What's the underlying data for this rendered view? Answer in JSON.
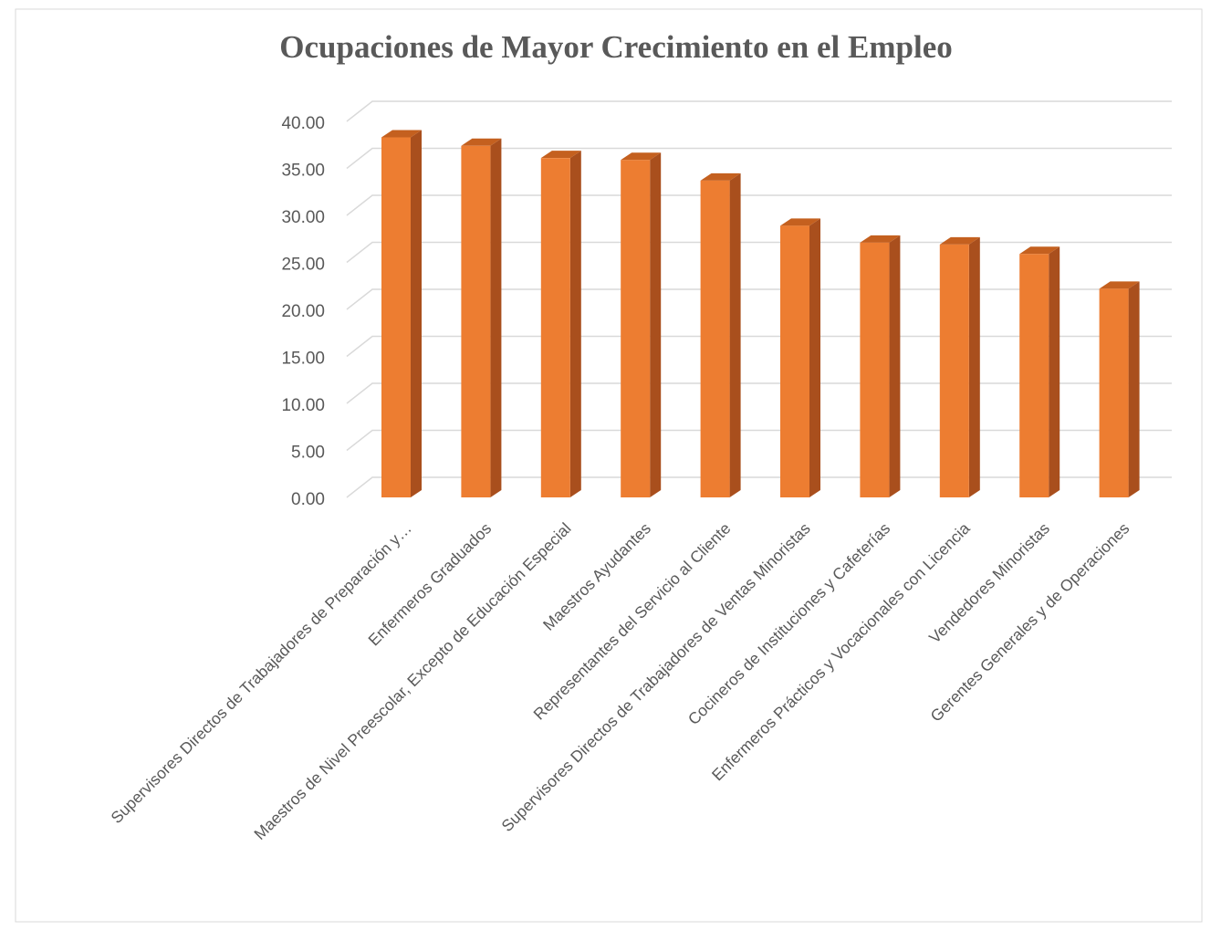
{
  "chart_data": {
    "type": "bar3d",
    "title": "Ocupaciones de Mayor Crecimiento en el Empleo",
    "categories": [
      "Supervisores Directos de Trabajadores de Preparación y…",
      "Enfermeros Graduados",
      "Maestros de Nivel Preescolar, Excepto de Educación Especial",
      "Maestros Ayudantes",
      "Representantes del Servicio al Cliente",
      "Supervisores Directos de Trabajadores de Ventas Minoristas",
      "Cocineros de Instituciones y Cafeterías",
      "Enfermeros Prácticos y Vocacionales con Licencia",
      "Vendedores Minoristas",
      "Gerentes Generales y de Operaciones"
    ],
    "values": [
      38.3,
      37.4,
      36.1,
      35.9,
      33.7,
      28.9,
      27.1,
      26.9,
      25.9,
      22.2
    ],
    "color": "#ed7d31",
    "side_color": "#a94f1d",
    "top_color": "#c4601f",
    "ylim": [
      0,
      40
    ],
    "yticks": [
      {
        "value": 0,
        "label": "0.00"
      },
      {
        "value": 5,
        "label": "5.00"
      },
      {
        "value": 10,
        "label": "10.00"
      },
      {
        "value": 15,
        "label": "15.00"
      },
      {
        "value": 20,
        "label": "20.00"
      },
      {
        "value": 25,
        "label": "25.00"
      },
      {
        "value": 30,
        "label": "30.00"
      },
      {
        "value": 35,
        "label": "35.00"
      },
      {
        "value": 40,
        "label": "40.00"
      }
    ],
    "grid": true
  }
}
